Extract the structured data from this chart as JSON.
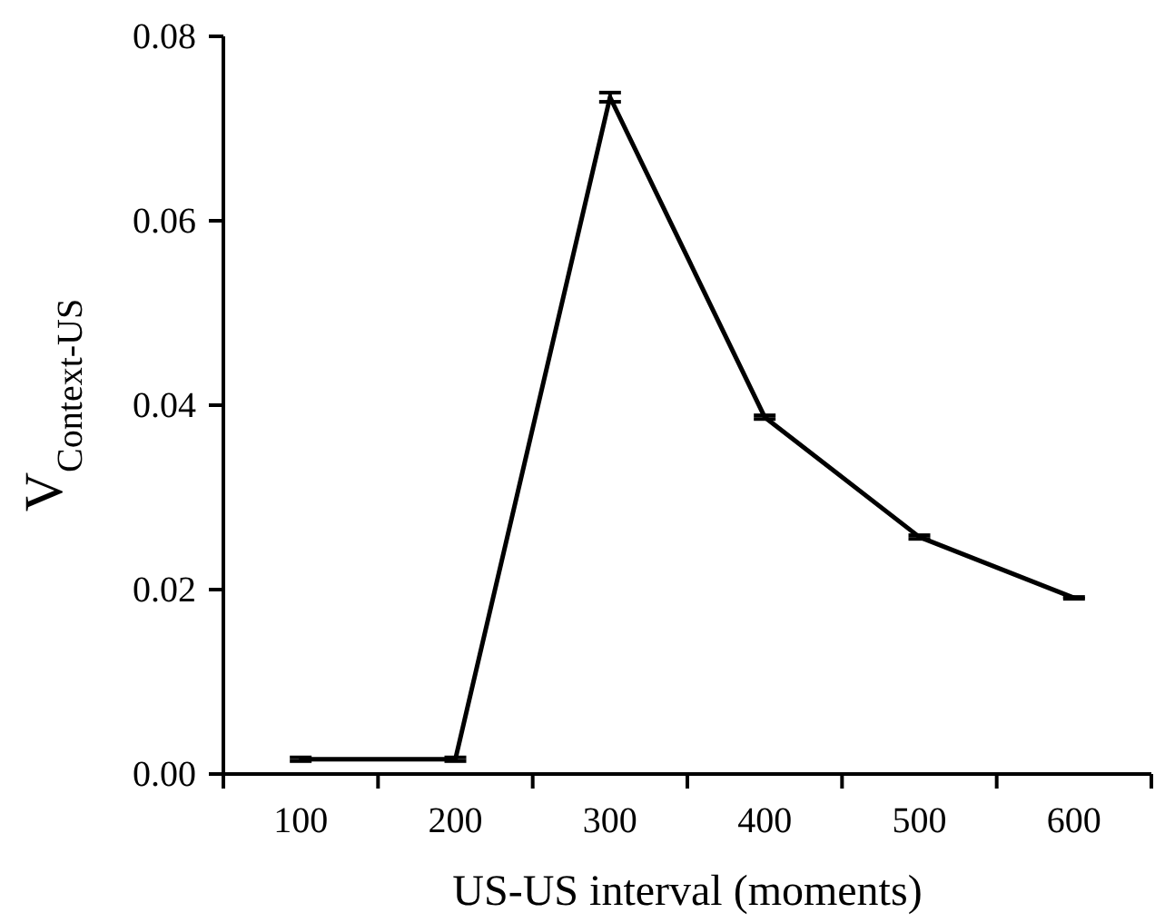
{
  "chart_data": {
    "type": "line",
    "xlabel": "US-US interval (moments)",
    "ylabel": "V$_{Context-US}$",
    "categories": [
      "100",
      "200",
      "300",
      "400",
      "500",
      "600"
    ],
    "series": [
      {
        "color": "#000000",
        "values": [
          0.0016,
          0.0016,
          0.0734,
          0.0387,
          0.0257,
          0.0191
        ],
        "errors": [
          0.0002,
          0.0002,
          0.0005,
          0.0002,
          0.0002,
          0.0001
        ]
      }
    ],
    "ylim": [
      0,
      0.08
    ],
    "yticks": [
      {
        "value": 0,
        "label": "0.00"
      },
      {
        "value": 0.02,
        "label": "0.02"
      },
      {
        "value": 0.04,
        "label": "0.04"
      },
      {
        "value": 0.06,
        "label": "0.06"
      },
      {
        "value": 0.08,
        "label": "0.08"
      }
    ],
    "grid": false,
    "marker": "none",
    "line_style": "solid"
  }
}
